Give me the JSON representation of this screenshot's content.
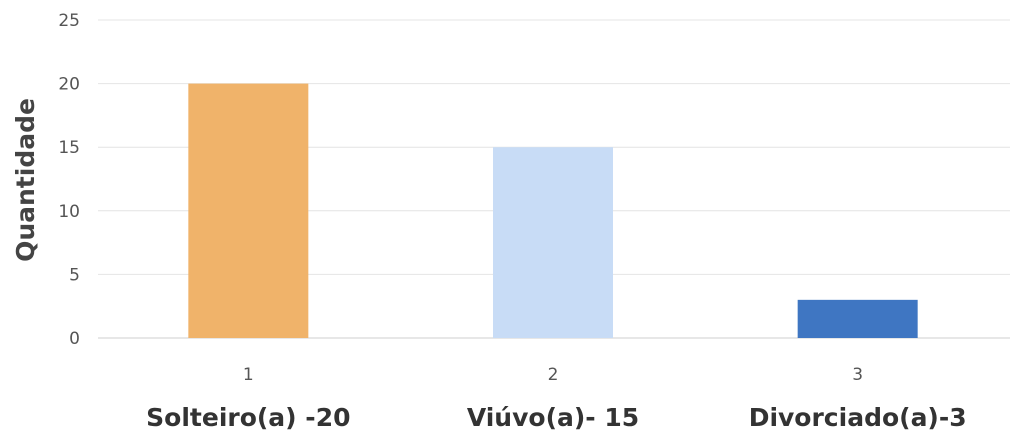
{
  "chart_data": {
    "type": "bar",
    "title": "",
    "xlabel": "",
    "ylabel": "Quantidade",
    "ylim": [
      0,
      25
    ],
    "yticks": [
      0,
      5,
      10,
      15,
      20,
      25
    ],
    "grid": true,
    "categories": [
      "1",
      "2",
      "3"
    ],
    "category_labels": [
      "Solteiro(a) -20",
      "Viúvo(a)- 15",
      "Divorciado(a)-3"
    ],
    "values": [
      20,
      15,
      3
    ],
    "colors": [
      "#f0b36a",
      "#c8dcf6",
      "#3f76c2"
    ]
  }
}
